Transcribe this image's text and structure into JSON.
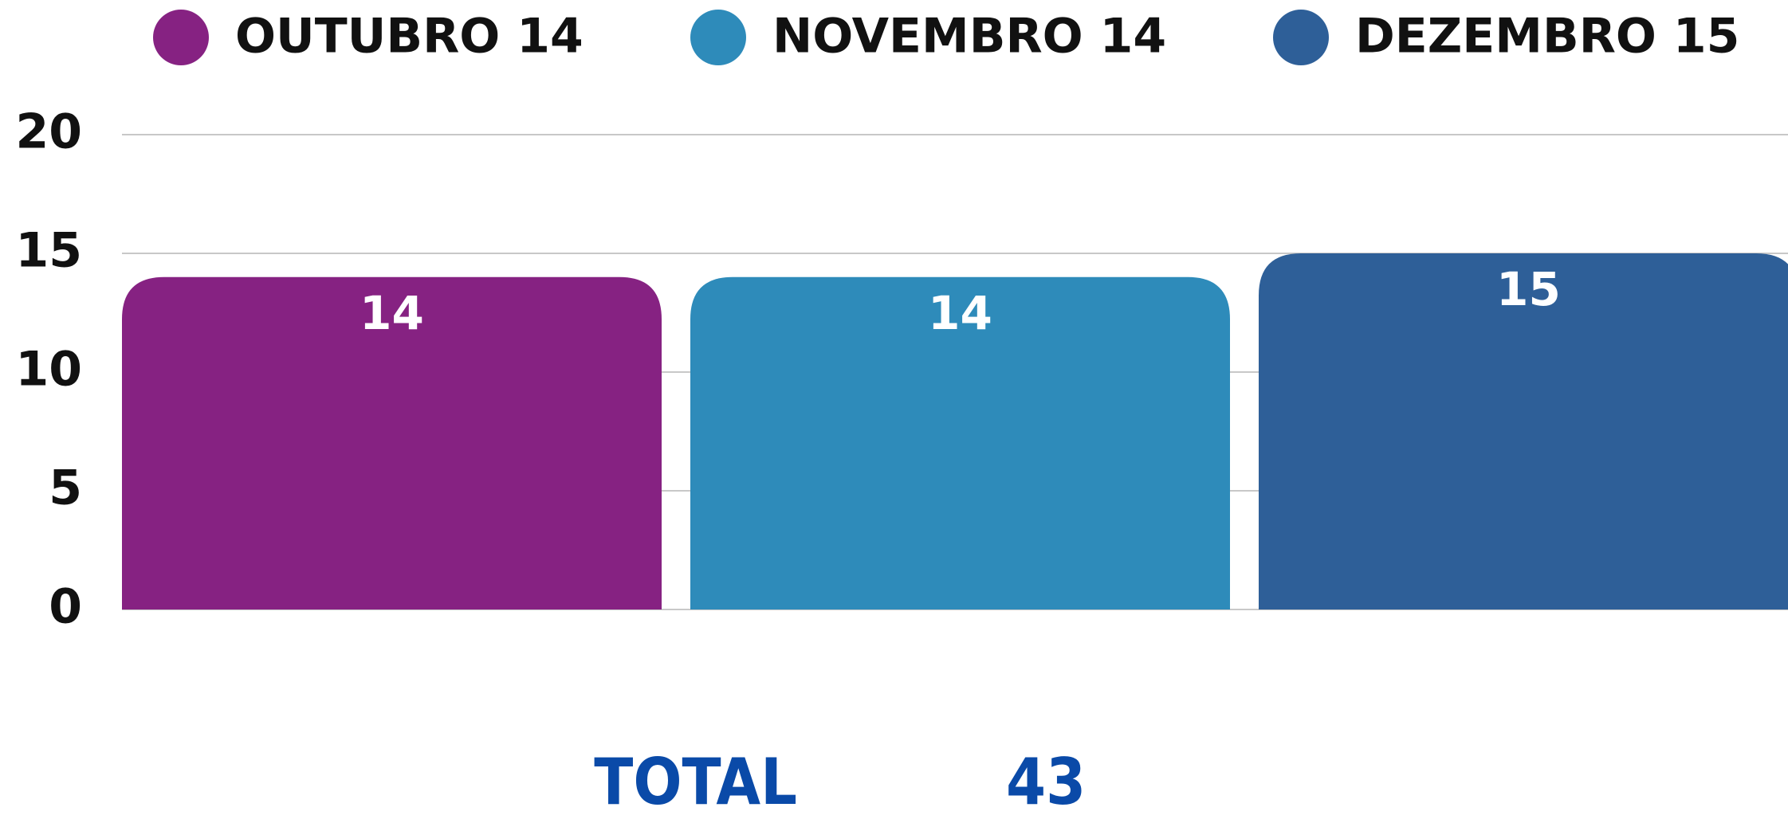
{
  "chart_data": {
    "type": "bar",
    "categories": [
      "OUTUBRO 14",
      "NOVEMBRO 14",
      "DEZEMBRO 15"
    ],
    "values": [
      14,
      14,
      15
    ],
    "colors": [
      "#862282",
      "#2e8bba",
      "#2e5f98"
    ],
    "ylim": [
      0,
      20
    ],
    "yticks": [
      0,
      5,
      10,
      15,
      20
    ],
    "grid": true,
    "total_label": "TOTAL",
    "total_value": 43
  }
}
